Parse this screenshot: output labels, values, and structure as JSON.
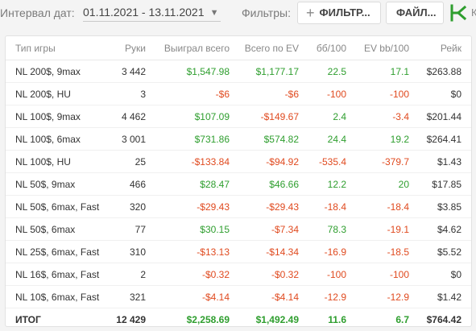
{
  "toolbar": {
    "date_label": "Интервал дат:",
    "date_range": "01.11.2021 - 13.11.2021",
    "filters_label": "Фильтры:",
    "filter_button": "ФИЛЬТР...",
    "file_button": "ФАЙЛ...",
    "edge_char": "К",
    "logo_color": "#2e9e2e"
  },
  "table": {
    "columns": [
      "Тип игры",
      "Руки",
      "Выиграл всего",
      "Всего по EV",
      "бб/100",
      "EV bb/100",
      "Рейк"
    ],
    "rows": [
      [
        "NL 200$, 9max",
        "3 442",
        "$1,547.98",
        "$1,177.17",
        "22.5",
        "17.1",
        "$263.88"
      ],
      [
        "NL 200$, HU",
        "3",
        "-$6",
        "-$6",
        "-100",
        "-100",
        "$0"
      ],
      [
        "NL 100$, 9max",
        "4 462",
        "$107.09",
        "-$149.67",
        "2.4",
        "-3.4",
        "$201.44"
      ],
      [
        "NL 100$, 6max",
        "3 001",
        "$731.86",
        "$574.82",
        "24.4",
        "19.2",
        "$264.41"
      ],
      [
        "NL 100$, HU",
        "25",
        "-$133.84",
        "-$94.92",
        "-535.4",
        "-379.7",
        "$1.43"
      ],
      [
        "NL 50$, 9max",
        "466",
        "$28.47",
        "$46.66",
        "12.2",
        "20",
        "$17.85"
      ],
      [
        "NL 50$, 6max, Fast",
        "320",
        "-$29.43",
        "-$29.43",
        "-18.4",
        "-18.4",
        "$3.85"
      ],
      [
        "NL 50$, 6max",
        "77",
        "$30.15",
        "-$7.34",
        "78.3",
        "-19.1",
        "$4.62"
      ],
      [
        "NL 25$, 6max, Fast",
        "310",
        "-$13.13",
        "-$14.34",
        "-16.9",
        "-18.5",
        "$5.52"
      ],
      [
        "NL 16$, 6max, Fast",
        "2",
        "-$0.32",
        "-$0.32",
        "-100",
        "-100",
        "$0"
      ],
      [
        "NL 10$, 6max, Fast",
        "321",
        "-$4.14",
        "-$4.14",
        "-12.9",
        "-12.9",
        "$1.42"
      ]
    ],
    "total": [
      "ИТОГ",
      "12 429",
      "$2,258.69",
      "$1,492.49",
      "11.6",
      "6.7",
      "$764.42"
    ]
  },
  "colors": {
    "positive": "#2e9e2e",
    "negative": "#e04a1f"
  }
}
